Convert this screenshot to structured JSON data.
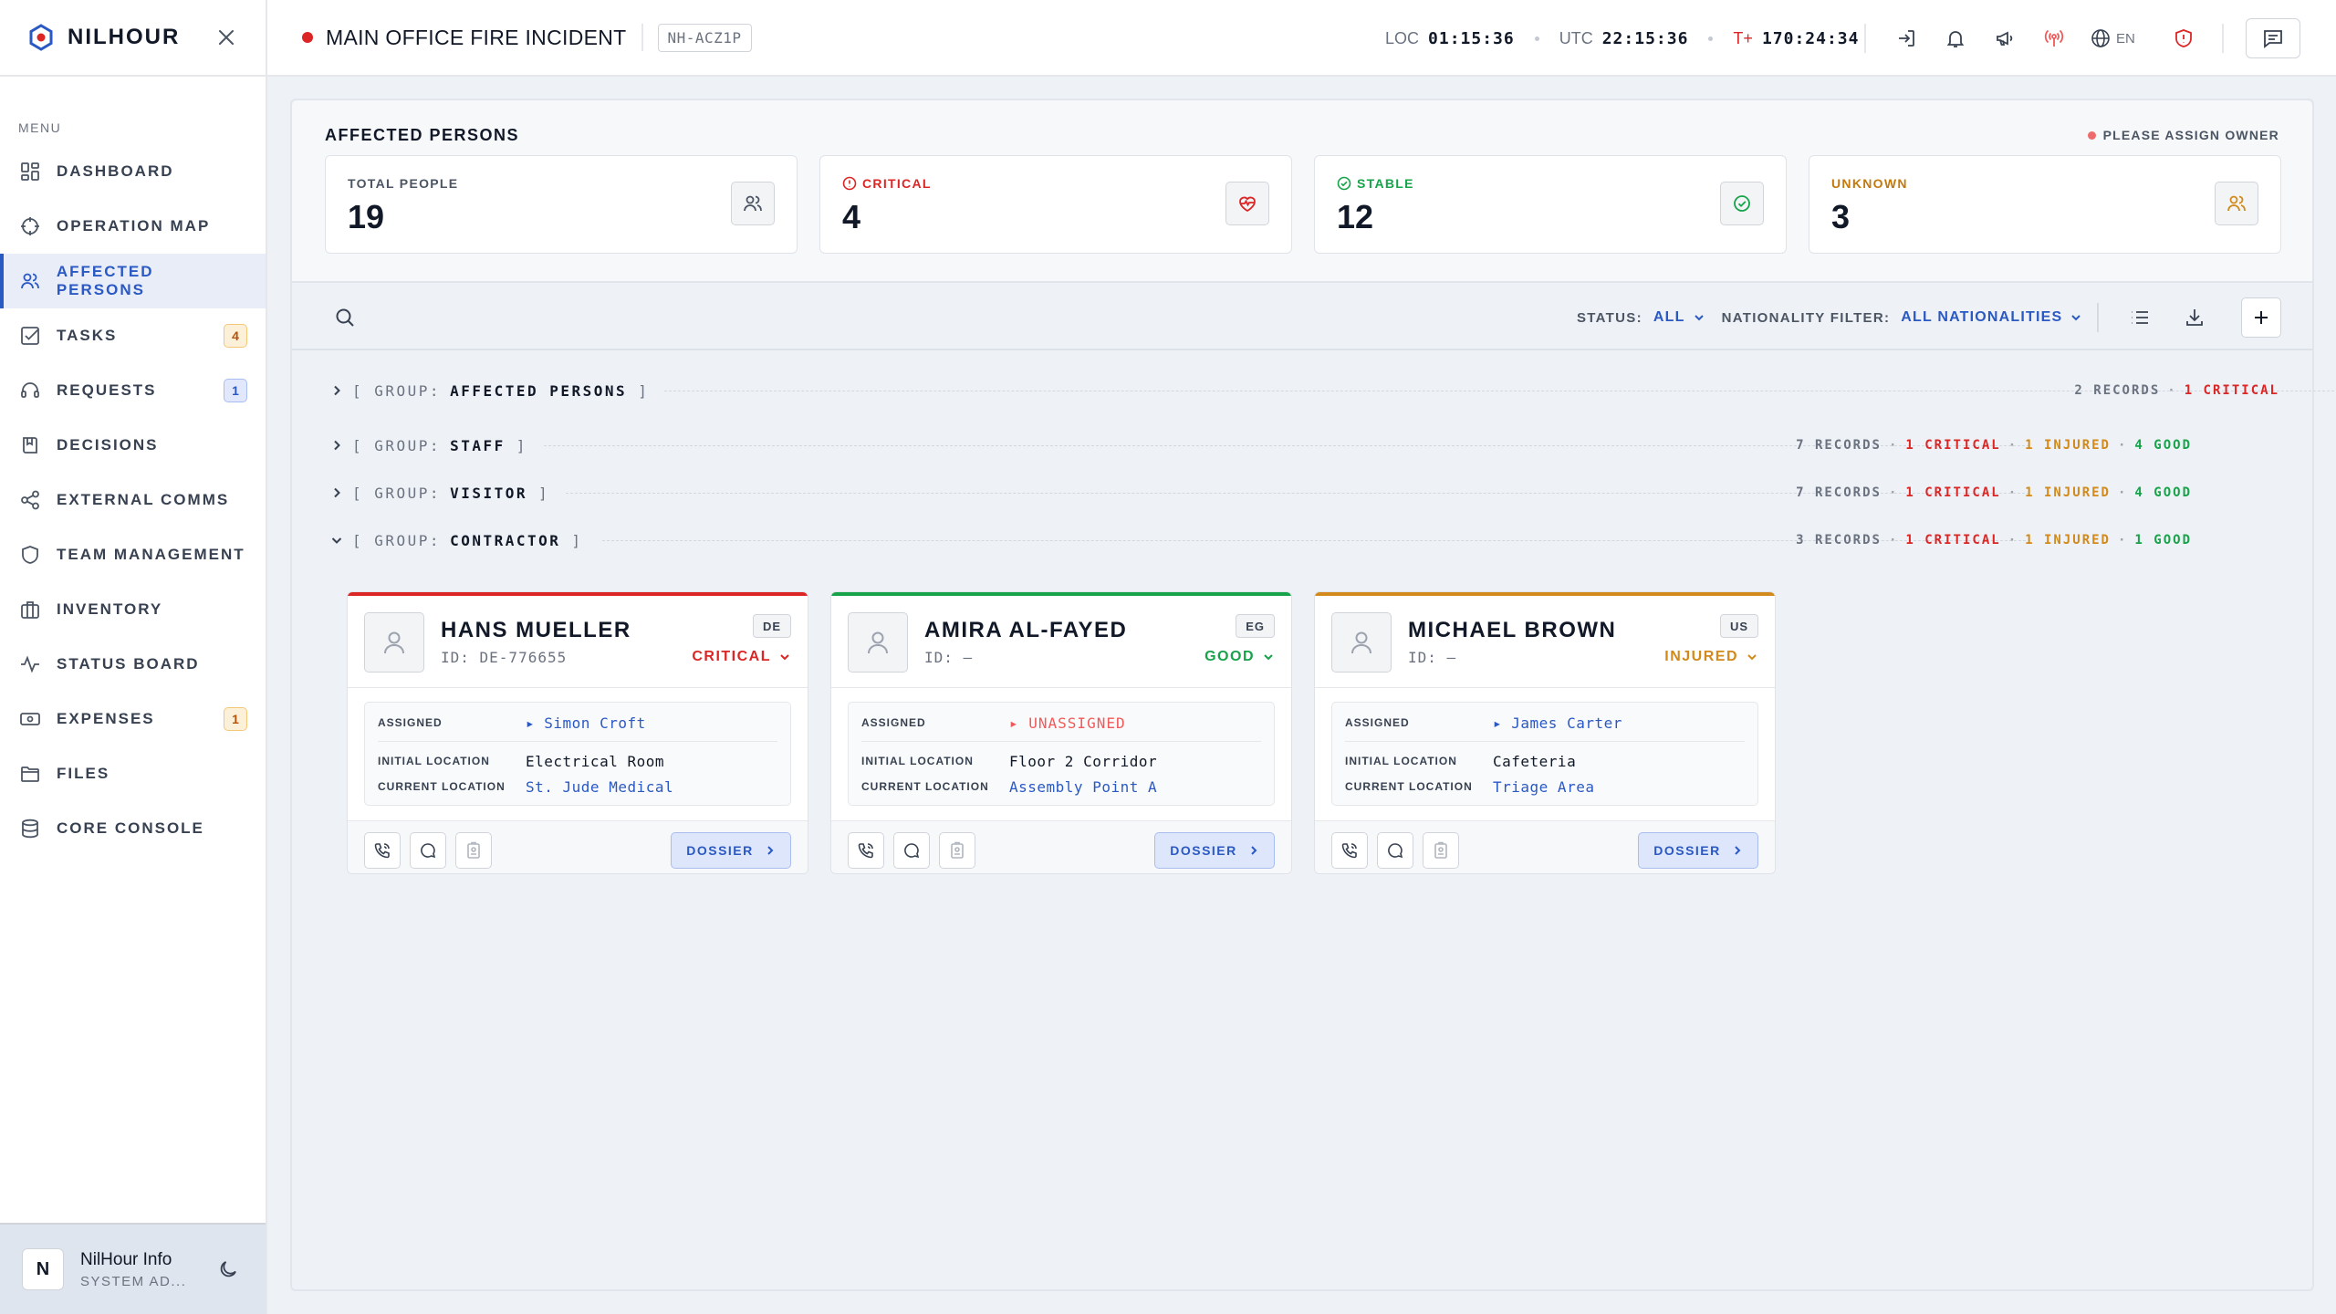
{
  "app": {
    "brand": "NILHOUR"
  },
  "sidebar": {
    "menu_label": "MENU",
    "items": [
      {
        "label": "DASHBOARD",
        "icon": "dashboard-icon"
      },
      {
        "label": "OPERATION MAP",
        "icon": "crosshair-icon"
      },
      {
        "label": "AFFECTED PERSONS",
        "icon": "users-icon",
        "active": true
      },
      {
        "label": "TASKS",
        "icon": "check-square-icon",
        "badge": "4"
      },
      {
        "label": "REQUESTS",
        "icon": "headset-icon",
        "badge": "1"
      },
      {
        "label": "DECISIONS",
        "icon": "book-icon"
      },
      {
        "label": "EXTERNAL COMMS",
        "icon": "share-icon"
      },
      {
        "label": "TEAM MANAGEMENT",
        "icon": "shield-icon"
      },
      {
        "label": "INVENTORY",
        "icon": "briefcase-icon"
      },
      {
        "label": "STATUS BOARD",
        "icon": "activity-icon"
      },
      {
        "label": "EXPENSES",
        "icon": "banknote-icon",
        "badge": "1"
      },
      {
        "label": "FILES",
        "icon": "folder-icon"
      },
      {
        "label": "CORE CONSOLE",
        "icon": "database-icon"
      }
    ],
    "user": {
      "initial": "N",
      "name": "NilHour Info",
      "role": "SYSTEM AD..."
    }
  },
  "header": {
    "incident_title": "MAIN OFFICE FIRE INCIDENT",
    "incident_id": "NH-ACZ1P",
    "clocks": {
      "loc_label": "LOC",
      "loc_value": "01:15:36",
      "utc_label": "UTC",
      "utc_value": "22:15:36",
      "t_label": "T+",
      "t_value": "170:24:34"
    },
    "language": "EN",
    "colors": {
      "live": "#dc2626",
      "accent": "#2b59c3"
    }
  },
  "summary": {
    "title": "AFFECTED PERSONS",
    "owner_note": "PLEASE ASSIGN OWNER",
    "stats": [
      {
        "label": "TOTAL PEOPLE",
        "value": "19",
        "icon": "users-icon"
      },
      {
        "label": "CRITICAL",
        "value": "4",
        "icon": "heart-pulse-icon"
      },
      {
        "label": "STABLE",
        "value": "12",
        "icon": "check-circle-icon"
      },
      {
        "label": "UNKNOWN",
        "value": "3",
        "icon": "users-icon"
      }
    ]
  },
  "toolbar": {
    "status_label": "STATUS:",
    "status_value": "ALL",
    "nationality_label": "NATIONALITY FILTER:",
    "nationality_value": "ALL NATIONALITIES"
  },
  "groups": [
    {
      "prefix": "[ GROUP:",
      "name": "AFFECTED PERSONS",
      "suffix": "]",
      "expanded": false,
      "records": "2 RECORDS",
      "critical": "1 CRITICAL"
    },
    {
      "prefix": "[ GROUP:",
      "name": "STAFF",
      "suffix": "]",
      "expanded": false,
      "records": "7 RECORDS",
      "critical": "1 CRITICAL",
      "injured": "1 INJURED",
      "good": "4 GOOD"
    },
    {
      "prefix": "[ GROUP:",
      "name": "VISITOR",
      "suffix": "]",
      "expanded": false,
      "records": "7 RECORDS",
      "critical": "1 CRITICAL",
      "injured": "1 INJURED",
      "good": "4 GOOD"
    },
    {
      "prefix": "[ GROUP:",
      "name": "CONTRACTOR",
      "suffix": "]",
      "expanded": true,
      "records": "3 RECORDS",
      "critical": "1 CRITICAL",
      "injured": "1 INJURED",
      "good": "1 GOOD"
    }
  ],
  "labels": {
    "assigned": "ASSIGNED",
    "initial_location": "INITIAL LOCATION",
    "current_location": "CURRENT LOCATION",
    "dossier": "DOSSIER"
  },
  "persons": [
    {
      "name": "HANS MUELLER",
      "id": "ID: DE-776655",
      "country": "DE",
      "status": "CRITICAL",
      "status_color": "#dc2626",
      "assigned": "▸ Simon Croft",
      "initial_location": "Electrical Room",
      "current_location": "St. Jude Medical"
    },
    {
      "name": "AMIRA AL-FAYED",
      "id": "ID: —",
      "country": "EG",
      "status": "GOOD",
      "status_color": "#16a34a",
      "assigned": "▸ UNASSIGNED",
      "initial_location": "Floor 2 Corridor",
      "current_location": "Assembly Point A"
    },
    {
      "name": "MICHAEL BROWN",
      "id": "ID: —",
      "country": "US",
      "status": "INJURED",
      "status_color": "#d18a1b",
      "assigned": "▸ James Carter",
      "initial_location": "Cafeteria",
      "current_location": "Triage Area"
    }
  ]
}
